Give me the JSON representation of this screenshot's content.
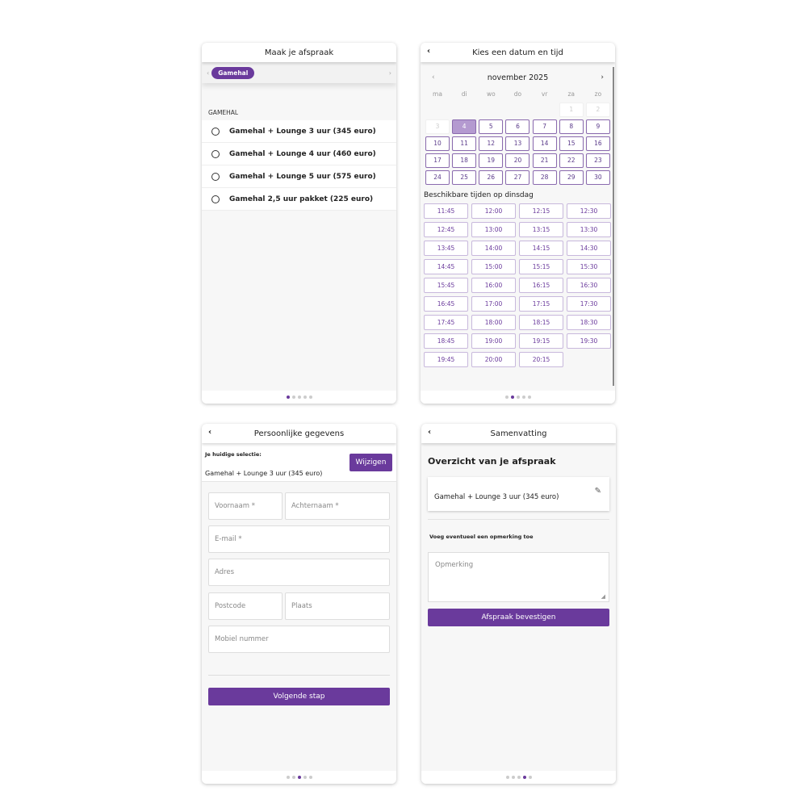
{
  "colors": {
    "accent": "#6a3a9c",
    "selected_day": "#b49ad0"
  },
  "step1": {
    "title": "Maak je afspraak",
    "chip": "Gamehal",
    "section": "GAMEHAL",
    "options": [
      "Gamehal + Lounge 3 uur (345 euro)",
      "Gamehal + Lounge 4 uur (460 euro)",
      "Gamehal + Lounge 5 uur (575 euro)",
      "Gamehal 2,5 uur pakket (225 euro)"
    ],
    "active_step": 1
  },
  "step2": {
    "title": "Kies een datum en tijd",
    "month": "november 2025",
    "weekdays": [
      "ma",
      "di",
      "wo",
      "do",
      "vr",
      "za",
      "zo"
    ],
    "leading_blank": 5,
    "days_in_month": 30,
    "disabled_days": [
      1,
      2,
      3
    ],
    "selected_day": 4,
    "times_label": "Beschikbare tijden op dinsdag",
    "times": [
      "11:45",
      "12:00",
      "12:15",
      "12:30",
      "12:45",
      "13:00",
      "13:15",
      "13:30",
      "13:45",
      "14:00",
      "14:15",
      "14:30",
      "14:45",
      "15:00",
      "15:15",
      "15:30",
      "15:45",
      "16:00",
      "16:15",
      "16:30",
      "16:45",
      "17:00",
      "17:15",
      "17:30",
      "17:45",
      "18:00",
      "18:15",
      "18:30",
      "18:45",
      "19:00",
      "19:15",
      "19:30",
      "19:45",
      "20:00",
      "20:15"
    ],
    "active_step": 2
  },
  "step3": {
    "title": "Persoonlijke gegevens",
    "selection_label": "Je huidige selectie:",
    "selection": "Gamehal + Lounge 3 uur (345 euro)",
    "change": "Wijzigen",
    "fields": {
      "first": "Voornaam *",
      "last": "Achternaam *",
      "email": "E-mail *",
      "address": "Adres",
      "zip": "Postcode",
      "city": "Plaats",
      "mobile": "Mobiel nummer"
    },
    "next": "Volgende stap",
    "active_step": 3
  },
  "step4": {
    "title": "Samenvatting",
    "heading": "Overzicht van je afspraak",
    "item": "Gamehal + Lounge 3 uur (345 euro)",
    "remark_label": "Voeg eventueel een opmerking toe",
    "remark_placeholder": "Opmerking",
    "confirm": "Afspraak bevestigen",
    "active_step": 4
  }
}
